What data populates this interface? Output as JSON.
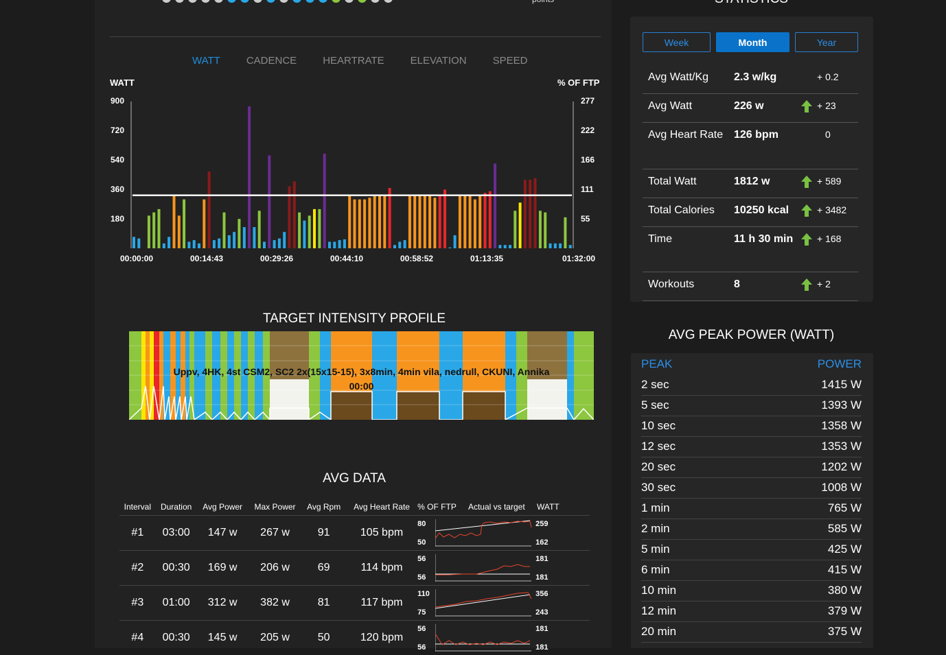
{
  "top": {
    "points_label": "points",
    "dot_colors": [
      "#cccccc",
      "#cccccc",
      "#cccccc",
      "#cccccc",
      "#cccccc",
      "#2aa7e6",
      "#2aa7e6",
      "#cccccc",
      "#2aa7e6",
      "#cccccc",
      "#2aa7e6",
      "#2aa7e6",
      "#2aa7e6",
      "#8dc63f",
      "#cccccc",
      "#8dc63f",
      "#cccccc",
      "#cccccc"
    ]
  },
  "tabs": [
    "WATT",
    "CADENCE",
    "HEARTRATE",
    "ELEVATION",
    "SPEED"
  ],
  "active_tab": "WATT",
  "chart": {
    "left_axis_title": "WATT",
    "right_axis_title": "% OF FTP",
    "left_ticks": [
      "900",
      "720",
      "540",
      "360",
      "180"
    ],
    "right_ticks": [
      "277",
      "222",
      "166",
      "111",
      "55"
    ],
    "x_ticks": [
      "00:00:00",
      "00:14:43",
      "00:29:26",
      "00:44:10",
      "00:58:52",
      "01:13:35",
      "01:32:00"
    ]
  },
  "chart_data": {
    "type": "bar",
    "ylim": [
      0,
      900
    ],
    "ftp_line": 325,
    "xlabel": "",
    "ylabel": "WATT",
    "y2label": "% OF FTP",
    "bars": [
      {
        "v": 70,
        "c": "#2aa7e6"
      },
      {
        "v": 60,
        "c": "#2aa7e6"
      },
      {
        "v": 0,
        "c": "#2aa7e6"
      },
      {
        "v": 200,
        "c": "#8dc63f"
      },
      {
        "v": 220,
        "c": "#8dc63f"
      },
      {
        "v": 240,
        "c": "#8dc63f"
      },
      {
        "v": 30,
        "c": "#2aa7e6"
      },
      {
        "v": 70,
        "c": "#2aa7e6"
      },
      {
        "v": 320,
        "c": "#f7941d"
      },
      {
        "v": 200,
        "c": "#f7941d"
      },
      {
        "v": 300,
        "c": "#8dc63f"
      },
      {
        "v": 40,
        "c": "#2aa7e6"
      },
      {
        "v": 50,
        "c": "#2aa7e6"
      },
      {
        "v": 30,
        "c": "#2aa7e6"
      },
      {
        "v": 300,
        "c": "#f7941d"
      },
      {
        "v": 470,
        "c": "#8b1a1a"
      },
      {
        "v": 50,
        "c": "#2aa7e6"
      },
      {
        "v": 60,
        "c": "#2aa7e6"
      },
      {
        "v": 220,
        "c": "#8dc63f"
      },
      {
        "v": 80,
        "c": "#2aa7e6"
      },
      {
        "v": 100,
        "c": "#2aa7e6"
      },
      {
        "v": 180,
        "c": "#8dc63f"
      },
      {
        "v": 130,
        "c": "#2aa7e6"
      },
      {
        "v": 870,
        "c": "#6a2c91"
      },
      {
        "v": 130,
        "c": "#2aa7e6"
      },
      {
        "v": 230,
        "c": "#8dc63f"
      },
      {
        "v": 40,
        "c": "#2aa7e6"
      },
      {
        "v": 570,
        "c": "#6a2c91"
      },
      {
        "v": 50,
        "c": "#2aa7e6"
      },
      {
        "v": 60,
        "c": "#2aa7e6"
      },
      {
        "v": 100,
        "c": "#2aa7e6"
      },
      {
        "v": 380,
        "c": "#8b1a1a"
      },
      {
        "v": 410,
        "c": "#8b1a1a"
      },
      {
        "v": 220,
        "c": "#8dc63f"
      },
      {
        "v": 170,
        "c": "#2aa7e6"
      },
      {
        "v": 200,
        "c": "#8dc63f"
      },
      {
        "v": 240,
        "c": "#ffe600"
      },
      {
        "v": 240,
        "c": "#8dc63f"
      },
      {
        "v": 580,
        "c": "#6a2c91"
      },
      {
        "v": 40,
        "c": "#2aa7e6"
      },
      {
        "v": 40,
        "c": "#2aa7e6"
      },
      {
        "v": 50,
        "c": "#2aa7e6"
      },
      {
        "v": 55,
        "c": "#2aa7e6"
      },
      {
        "v": 320,
        "c": "#f7941d"
      },
      {
        "v": 300,
        "c": "#f7941d"
      },
      {
        "v": 300,
        "c": "#f7941d"
      },
      {
        "v": 300,
        "c": "#f7941d"
      },
      {
        "v": 310,
        "c": "#f7941d"
      },
      {
        "v": 320,
        "c": "#f7941d"
      },
      {
        "v": 320,
        "c": "#f7941d"
      },
      {
        "v": 320,
        "c": "#f7941d"
      },
      {
        "v": 370,
        "c": "#e8262b"
      },
      {
        "v": 20,
        "c": "#2aa7e6"
      },
      {
        "v": 40,
        "c": "#2aa7e6"
      },
      {
        "v": 50,
        "c": "#2aa7e6"
      },
      {
        "v": 320,
        "c": "#f7941d"
      },
      {
        "v": 320,
        "c": "#f7941d"
      },
      {
        "v": 320,
        "c": "#f7941d"
      },
      {
        "v": 330,
        "c": "#f7941d"
      },
      {
        "v": 320,
        "c": "#f7941d"
      },
      {
        "v": 310,
        "c": "#f7941d"
      },
      {
        "v": 330,
        "c": "#e8262b"
      },
      {
        "v": 360,
        "c": "#e8262b"
      },
      {
        "v": 5,
        "c": "#2aa7e6"
      },
      {
        "v": 80,
        "c": "#2aa7e6"
      },
      {
        "v": 320,
        "c": "#f7941d"
      },
      {
        "v": 320,
        "c": "#f7941d"
      },
      {
        "v": 320,
        "c": "#f7941d"
      },
      {
        "v": 300,
        "c": "#f7941d"
      },
      {
        "v": 320,
        "c": "#f7941d"
      },
      {
        "v": 340,
        "c": "#e8262b"
      },
      {
        "v": 350,
        "c": "#e8262b"
      },
      {
        "v": 520,
        "c": "#6a2c91"
      },
      {
        "v": 20,
        "c": "#2aa7e6"
      },
      {
        "v": 20,
        "c": "#2aa7e6"
      },
      {
        "v": 20,
        "c": "#2aa7e6"
      },
      {
        "v": 230,
        "c": "#8dc63f"
      },
      {
        "v": 280,
        "c": "#ffe600"
      },
      {
        "v": 420,
        "c": "#8b1a1a"
      },
      {
        "v": 420,
        "c": "#8b1a1a"
      },
      {
        "v": 430,
        "c": "#8b1a1a"
      },
      {
        "v": 230,
        "c": "#8dc63f"
      },
      {
        "v": 220,
        "c": "#8dc63f"
      },
      {
        "v": 30,
        "c": "#2aa7e6"
      },
      {
        "v": 30,
        "c": "#2aa7e6"
      },
      {
        "v": 30,
        "c": "#2aa7e6"
      },
      {
        "v": 190,
        "c": "#8dc63f"
      },
      {
        "v": 20,
        "c": "#2aa7e6"
      }
    ]
  },
  "profile": {
    "title": "TARGET INTENSITY PROFILE",
    "label_line1": "Uppv, 4HK, 4st CSM2, SC2 2x(15x15-15), 3x8min, 4min vila, nedrull, CKUNI, Annika",
    "label_line2": "00:00"
  },
  "avg_data": {
    "title": "AVG DATA",
    "headers": [
      "Interval",
      "Duration",
      "Avg Power",
      "Max Power",
      "Avg Rpm",
      "Avg Heart Rate",
      "% OF FTP",
      "Actual vs target",
      "WATT"
    ],
    "rows": [
      {
        "interval": "#1",
        "duration": "03:00",
        "avg_power": "147 w",
        "max_power": "267 w",
        "avg_rpm": "91",
        "avg_hr": "105 bpm",
        "ftp_top": "80",
        "ftp_bottom": "50",
        "watt_top": "259",
        "watt_bottom": "162"
      },
      {
        "interval": "#2",
        "duration": "00:30",
        "avg_power": "169 w",
        "max_power": "206 w",
        "avg_rpm": "69",
        "avg_hr": "114 bpm",
        "ftp_top": "56",
        "ftp_bottom": "56",
        "watt_top": "181",
        "watt_bottom": "181"
      },
      {
        "interval": "#3",
        "duration": "01:00",
        "avg_power": "312 w",
        "max_power": "382 w",
        "avg_rpm": "81",
        "avg_hr": "117 bpm",
        "ftp_top": "110",
        "ftp_bottom": "75",
        "watt_top": "356",
        "watt_bottom": "243"
      },
      {
        "interval": "#4",
        "duration": "00:30",
        "avg_power": "145 w",
        "max_power": "205 w",
        "avg_rpm": "50",
        "avg_hr": "120 bpm",
        "ftp_top": "56",
        "ftp_bottom": "56",
        "watt_top": "181",
        "watt_bottom": "181"
      }
    ]
  },
  "statistics": {
    "title": "STATISTICS",
    "periods": [
      "Week",
      "Month",
      "Year"
    ],
    "active_period": "Month",
    "rows": [
      {
        "label": "Avg Watt/Kg",
        "value": "2.3 w/kg",
        "arrow": false,
        "delta": "+ 0.2"
      },
      {
        "label": "Avg Watt",
        "value": "226 w",
        "arrow": true,
        "delta": "+ 23"
      },
      {
        "label": "Avg Heart Rate",
        "value": "126 bpm",
        "arrow": false,
        "delta": "0"
      },
      {
        "label": "Total Watt",
        "value": "1812 w",
        "arrow": true,
        "delta": "+ 589"
      },
      {
        "label": "Total Calories",
        "value": "10250 kcal",
        "arrow": true,
        "delta": "+ 3482"
      },
      {
        "label": "Time",
        "value": "11 h 30 min",
        "arrow": true,
        "delta": "+ 168"
      },
      {
        "label": "Workouts",
        "value": "8",
        "arrow": true,
        "delta": "+ 2"
      }
    ]
  },
  "peak_power": {
    "title": "AVG PEAK POWER (WATT)",
    "col_peak": "PEAK",
    "col_power": "POWER",
    "rows": [
      {
        "peak": "2 sec",
        "power": "1415 W"
      },
      {
        "peak": "5 sec",
        "power": "1393 W"
      },
      {
        "peak": "10 sec",
        "power": "1358 W"
      },
      {
        "peak": "12 sec",
        "power": "1353 W"
      },
      {
        "peak": "20 sec",
        "power": "1202 W"
      },
      {
        "peak": "30 sec",
        "power": "1008 W"
      },
      {
        "peak": "1 min",
        "power": "765 W"
      },
      {
        "peak": "2 min",
        "power": "585 W"
      },
      {
        "peak": "5 min",
        "power": "425 W"
      },
      {
        "peak": "6 min",
        "power": "415 W"
      },
      {
        "peak": "10 min",
        "power": "380 W"
      },
      {
        "peak": "12 min",
        "power": "379 W"
      },
      {
        "peak": "20 min",
        "power": "375 W"
      }
    ]
  }
}
